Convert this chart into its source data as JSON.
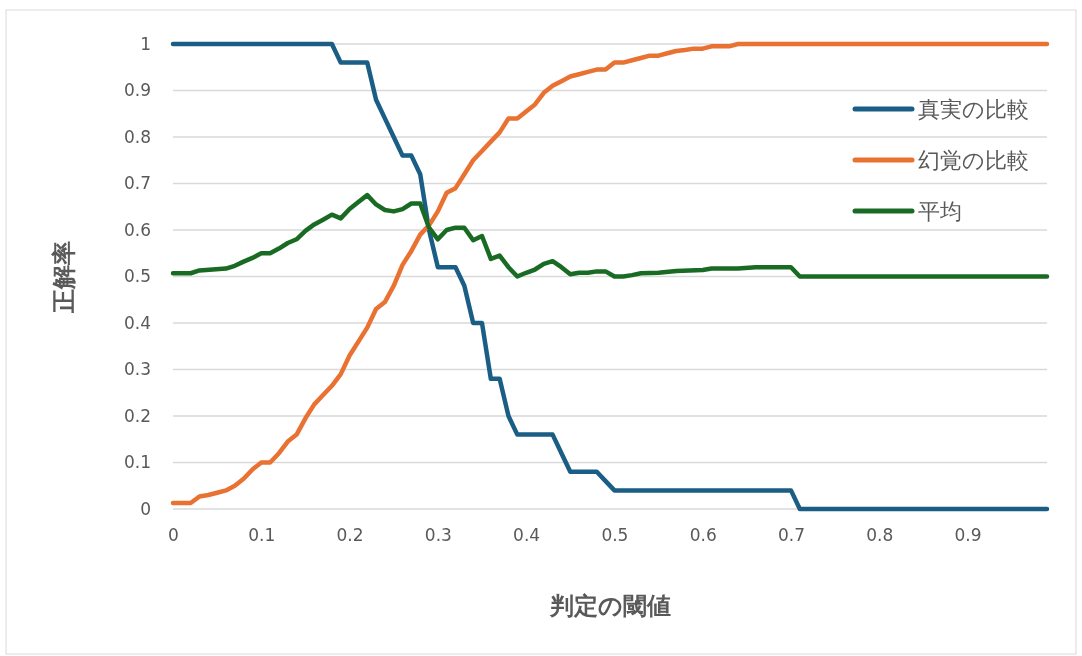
{
  "chart_data": {
    "type": "line",
    "xlabel": "判定の閾値",
    "ylabel": "正解率",
    "xlim": [
      0,
      0.99
    ],
    "xticks": [
      0,
      0.1,
      0.2,
      0.3,
      0.4,
      0.5,
      0.6,
      0.7,
      0.8,
      0.9
    ],
    "ylim": [
      0,
      1
    ],
    "yticks": [
      0,
      0.1,
      0.2,
      0.3,
      0.4,
      0.5,
      0.6,
      0.7,
      0.8,
      0.9,
      1
    ],
    "grid": "y",
    "legend": "right",
    "marker": "none",
    "line_style": "solid",
    "series": [
      {
        "name": "真実の比較",
        "color": "#1b5e85",
        "x": [
          0,
          0.18,
          0.19,
          0.22,
          0.23,
          0.24,
          0.25,
          0.26,
          0.27,
          0.28,
          0.29,
          0.3,
          0.32,
          0.33,
          0.34,
          0.35,
          0.36,
          0.37,
          0.38,
          0.39,
          0.43,
          0.44,
          0.45,
          0.48,
          0.49,
          0.5,
          0.7,
          0.71,
          0.99
        ],
        "values": [
          1,
          1,
          0.96,
          0.96,
          0.88,
          0.84,
          0.8,
          0.76,
          0.76,
          0.72,
          0.6,
          0.52,
          0.52,
          0.48,
          0.4,
          0.4,
          0.28,
          0.28,
          0.2,
          0.16,
          0.16,
          0.12,
          0.08,
          0.08,
          0.06,
          0.04,
          0.04,
          0,
          0
        ]
      },
      {
        "name": "幻覚の比較",
        "color": "#e97132",
        "x": [
          0,
          0.02,
          0.03,
          0.04,
          0.05,
          0.06,
          0.07,
          0.08,
          0.09,
          0.1,
          0.11,
          0.12,
          0.13,
          0.14,
          0.15,
          0.16,
          0.17,
          0.18,
          0.19,
          0.2,
          0.21,
          0.22,
          0.23,
          0.24,
          0.25,
          0.26,
          0.27,
          0.28,
          0.29,
          0.3,
          0.31,
          0.32,
          0.33,
          0.34,
          0.35,
          0.36,
          0.37,
          0.38,
          0.39,
          0.4,
          0.41,
          0.42,
          0.43,
          0.44,
          0.45,
          0.46,
          0.47,
          0.48,
          0.49,
          0.5,
          0.51,
          0.52,
          0.53,
          0.54,
          0.55,
          0.56,
          0.57,
          0.58,
          0.59,
          0.6,
          0.61,
          0.63,
          0.64,
          0.99
        ],
        "values": [
          0.013,
          0.013,
          0.027,
          0.03,
          0.035,
          0.04,
          0.05,
          0.065,
          0.085,
          0.1,
          0.1,
          0.12,
          0.145,
          0.16,
          0.195,
          0.225,
          0.245,
          0.265,
          0.29,
          0.33,
          0.36,
          0.39,
          0.43,
          0.445,
          0.48,
          0.525,
          0.555,
          0.59,
          0.61,
          0.64,
          0.68,
          0.69,
          0.72,
          0.75,
          0.77,
          0.79,
          0.81,
          0.84,
          0.84,
          0.855,
          0.87,
          0.895,
          0.91,
          0.92,
          0.93,
          0.935,
          0.94,
          0.945,
          0.945,
          0.96,
          0.96,
          0.965,
          0.97,
          0.975,
          0.975,
          0.98,
          0.985,
          0.987,
          0.99,
          0.99,
          0.995,
          0.995,
          1,
          1
        ]
      },
      {
        "name": "平均",
        "color": "#196b24",
        "x": [
          0,
          0.02,
          0.03,
          0.06,
          0.07,
          0.08,
          0.09,
          0.1,
          0.11,
          0.12,
          0.13,
          0.14,
          0.15,
          0.16,
          0.17,
          0.18,
          0.19,
          0.2,
          0.21,
          0.22,
          0.23,
          0.24,
          0.25,
          0.26,
          0.27,
          0.28,
          0.29,
          0.3,
          0.31,
          0.32,
          0.33,
          0.34,
          0.35,
          0.36,
          0.37,
          0.38,
          0.39,
          0.4,
          0.41,
          0.42,
          0.43,
          0.44,
          0.45,
          0.46,
          0.47,
          0.48,
          0.49,
          0.5,
          0.51,
          0.52,
          0.53,
          0.55,
          0.57,
          0.6,
          0.61,
          0.64,
          0.66,
          0.7,
          0.71,
          0.99
        ],
        "values": [
          0.507,
          0.507,
          0.513,
          0.517,
          0.523,
          0.532,
          0.54,
          0.55,
          0.55,
          0.56,
          0.572,
          0.58,
          0.598,
          0.612,
          0.622,
          0.633,
          0.625,
          0.645,
          0.66,
          0.675,
          0.655,
          0.643,
          0.64,
          0.645,
          0.657,
          0.657,
          0.605,
          0.58,
          0.6,
          0.605,
          0.605,
          0.578,
          0.587,
          0.538,
          0.545,
          0.52,
          0.5,
          0.508,
          0.515,
          0.527,
          0.533,
          0.52,
          0.505,
          0.508,
          0.508,
          0.511,
          0.511,
          0.5,
          0.5,
          0.503,
          0.507,
          0.508,
          0.512,
          0.514,
          0.517,
          0.517,
          0.52,
          0.52,
          0.5,
          0.5
        ]
      }
    ]
  }
}
